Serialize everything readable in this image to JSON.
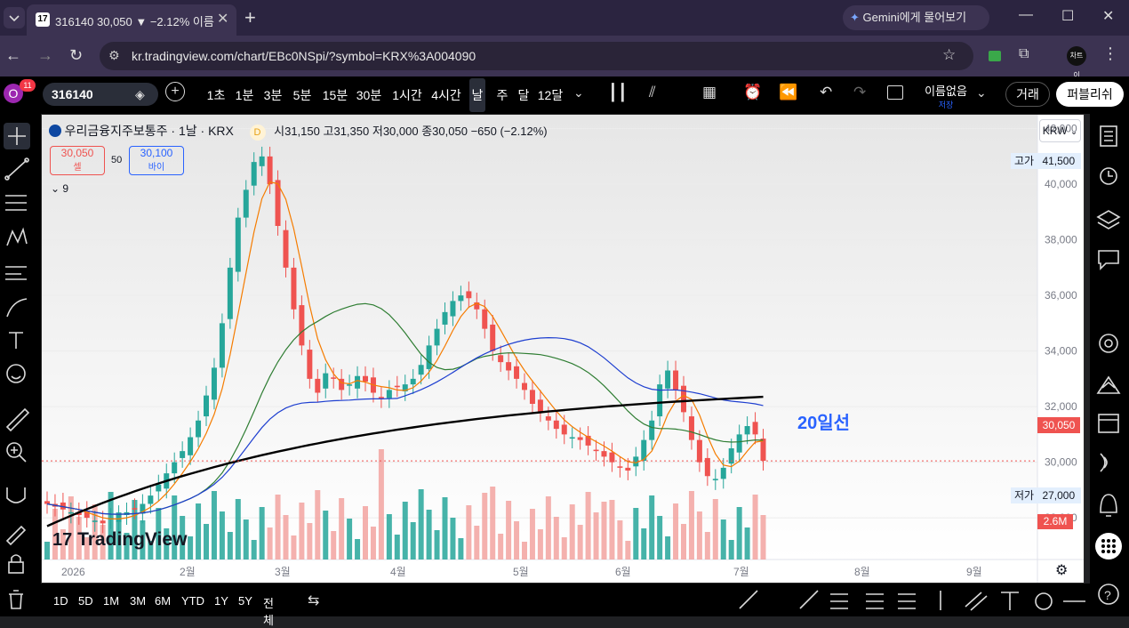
{
  "browser": {
    "tab_title": "316140 30,050 ▼ −2.12% 이름",
    "new_tab_label": "+",
    "url": "kr.tradingview.com/chart/EBc0NSpi/?symbol=KRX%3A004090",
    "gemini_label": "Gemini에게 물어보기",
    "profile_label": "차트이"
  },
  "toolbar": {
    "profile_badge": "11",
    "profile_initial": "O",
    "symbol": "316140",
    "intervals": [
      "1초",
      "1분",
      "3분",
      "5분",
      "15분",
      "30분",
      "1시간",
      "4시간",
      "날",
      "주",
      "달",
      "12달"
    ],
    "active_interval": "날",
    "layout_name": "이름없음",
    "layout_status": "저장",
    "trade_label": "거래",
    "publish_label": "퍼블리쉬"
  },
  "legend": {
    "title": "우리금융지주보통주 · 1날 · KRX",
    "open": "시31,150",
    "high": "고31,350",
    "low": "저30,000",
    "close": "종30,050",
    "change": "−650 (−2.12%)",
    "sell_price": "30,050",
    "sell_label": "셀",
    "spread": "50",
    "buy_price": "30,100",
    "buy_label": "바이",
    "indicators_count": "9",
    "currency": "KRW",
    "d_badge": "D"
  },
  "annotation": "20일선",
  "price_axis": {
    "ticks": [
      "42,000",
      "40,000",
      "38,000",
      "36,000",
      "34,000",
      "32,000",
      "30,000",
      "28,000"
    ],
    "high_label": "고가",
    "high_value": "41,500",
    "low_label": "저가",
    "low_value": "27,000",
    "last_price": "30,050",
    "last_volume": "2.6M"
  },
  "time_axis": {
    "ticks": [
      "2026",
      "2월",
      "3월",
      "4월",
      "5월",
      "6월",
      "7월",
      "8월",
      "9월"
    ]
  },
  "watermark": "TradingView",
  "bottom": {
    "ranges": [
      "1D",
      "5D",
      "1M",
      "3M",
      "6M",
      "YTD",
      "1Y",
      "5Y",
      "전체"
    ]
  },
  "colors": {
    "up": "#26a69a",
    "down": "#ef5350",
    "ma5": "#f57c00",
    "ma20": "#2e7d32",
    "ma60": "#1e3fd0",
    "ma120": "#000000",
    "annotation": "#2962ff"
  },
  "chart_data": {
    "type": "candlestick",
    "y_range": [
      26500,
      42500
    ],
    "series": [
      {
        "name": "",
        "values": [
          28500,
          28400,
          28300,
          28200,
          28100,
          28000,
          27900,
          27800,
          28000,
          28100,
          28200,
          28300,
          28500,
          28800,
          29200,
          29600,
          30000,
          30400,
          30900,
          31500,
          32400,
          33400,
          35000,
          37000,
          38800,
          39800,
          40800,
          41000,
          40000,
          38500,
          37000,
          35500,
          34200,
          33000,
          32500,
          33200,
          33000,
          32600,
          32800,
          33100,
          32900,
          32500,
          32300,
          32600,
          32700,
          32800,
          33000,
          33500,
          34200,
          34800,
          35400,
          35800,
          36000,
          35900,
          35500,
          34800,
          34000,
          33600,
          33300,
          33000,
          32600,
          32100,
          31800,
          31500,
          31200,
          31000,
          30900,
          30800,
          30600,
          30400,
          30200,
          30000,
          29800,
          29700,
          30200,
          30800,
          31500,
          32800,
          33300,
          32600,
          31800,
          30800,
          30000,
          29500,
          29400,
          29800,
          30500,
          31000,
          31300,
          31000,
          30050
        ]
      }
    ]
  }
}
